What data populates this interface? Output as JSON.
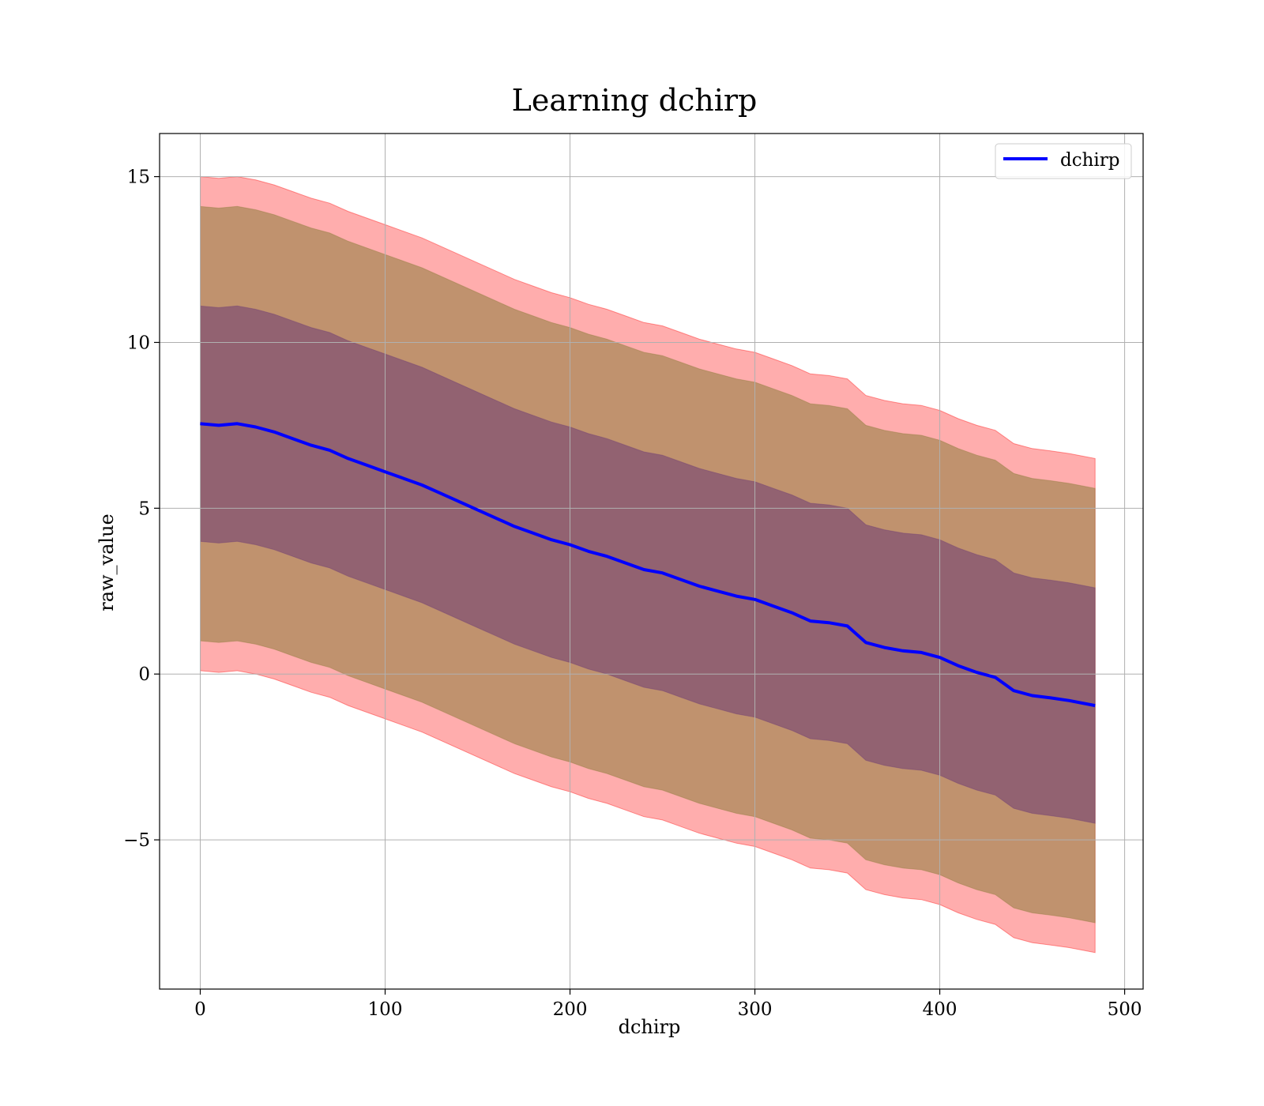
{
  "chart_data": {
    "type": "line",
    "title": "Learning dchirp",
    "xlabel": "dchirp",
    "ylabel": "raw_value",
    "xlim": [
      -22,
      510
    ],
    "ylim": [
      -9.5,
      16.3
    ],
    "xticks": [
      0,
      100,
      200,
      300,
      400,
      500
    ],
    "xtick_labels": [
      "0",
      "100",
      "200",
      "300",
      "400",
      "500"
    ],
    "yticks": [
      -5,
      0,
      5,
      10,
      15
    ],
    "ytick_labels": [
      "−5",
      "0",
      "5",
      "10",
      "15"
    ],
    "grid": true,
    "legend": {
      "placement": "top-right",
      "entries": [
        "dchirp"
      ]
    },
    "colors": {
      "line": "#0000ff",
      "band_outer": "#ff0000",
      "band_mid": "#8c7b3a",
      "band_inner": "#6b3a75"
    },
    "series": [
      {
        "name": "dchirp",
        "x": [
          0,
          10,
          20,
          30,
          40,
          50,
          60,
          70,
          80,
          90,
          100,
          110,
          120,
          130,
          140,
          150,
          160,
          170,
          180,
          190,
          200,
          210,
          220,
          230,
          240,
          250,
          260,
          270,
          280,
          290,
          300,
          310,
          320,
          330,
          340,
          350,
          360,
          370,
          380,
          390,
          400,
          410,
          420,
          430,
          440,
          450,
          460,
          470,
          484
        ],
        "y": [
          7.55,
          7.5,
          7.55,
          7.45,
          7.3,
          7.1,
          6.9,
          6.75,
          6.5,
          6.3,
          6.1,
          5.9,
          5.7,
          5.45,
          5.2,
          4.95,
          4.7,
          4.45,
          4.25,
          4.05,
          3.9,
          3.7,
          3.55,
          3.35,
          3.15,
          3.05,
          2.85,
          2.65,
          2.5,
          2.35,
          2.25,
          2.05,
          1.85,
          1.6,
          1.55,
          1.45,
          0.95,
          0.8,
          0.7,
          0.65,
          0.5,
          0.25,
          0.05,
          -0.1,
          -0.5,
          -0.65,
          -0.72,
          -0.8,
          -0.95
        ]
      }
    ],
    "bands": [
      {
        "level": "outer",
        "upper_offset": 7.45,
        "lower_offset": -7.45
      },
      {
        "level": "mid",
        "upper_offset": 6.55,
        "lower_offset": -6.55
      },
      {
        "level": "inner",
        "upper_offset": 3.55,
        "lower_offset": -3.55
      }
    ]
  }
}
